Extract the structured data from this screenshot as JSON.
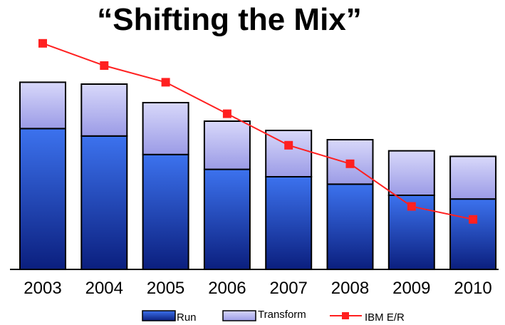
{
  "chart_data": {
    "type": "bar",
    "stacked": true,
    "title": "“Shifting the Mix”",
    "categories": [
      "2003",
      "2004",
      "2005",
      "2006",
      "2007",
      "2008",
      "2009",
      "2010"
    ],
    "series": [
      {
        "name": "Run",
        "kind": "bar",
        "color": "#2f5fd6",
        "values": [
          76,
          72,
          62,
          54,
          50,
          46,
          40,
          38
        ]
      },
      {
        "name": "Transform",
        "kind": "bar",
        "color": "#b6b6ee",
        "values": [
          25,
          28,
          28,
          26,
          25,
          24,
          24,
          23
        ]
      },
      {
        "name": "IBM E/R",
        "kind": "line",
        "color": "#ff2020",
        "values": [
          122,
          110,
          101,
          84,
          67,
          57,
          34,
          27
        ]
      }
    ],
    "ylim": [
      0,
      140
    ],
    "grid": false,
    "legend": "bottom"
  }
}
